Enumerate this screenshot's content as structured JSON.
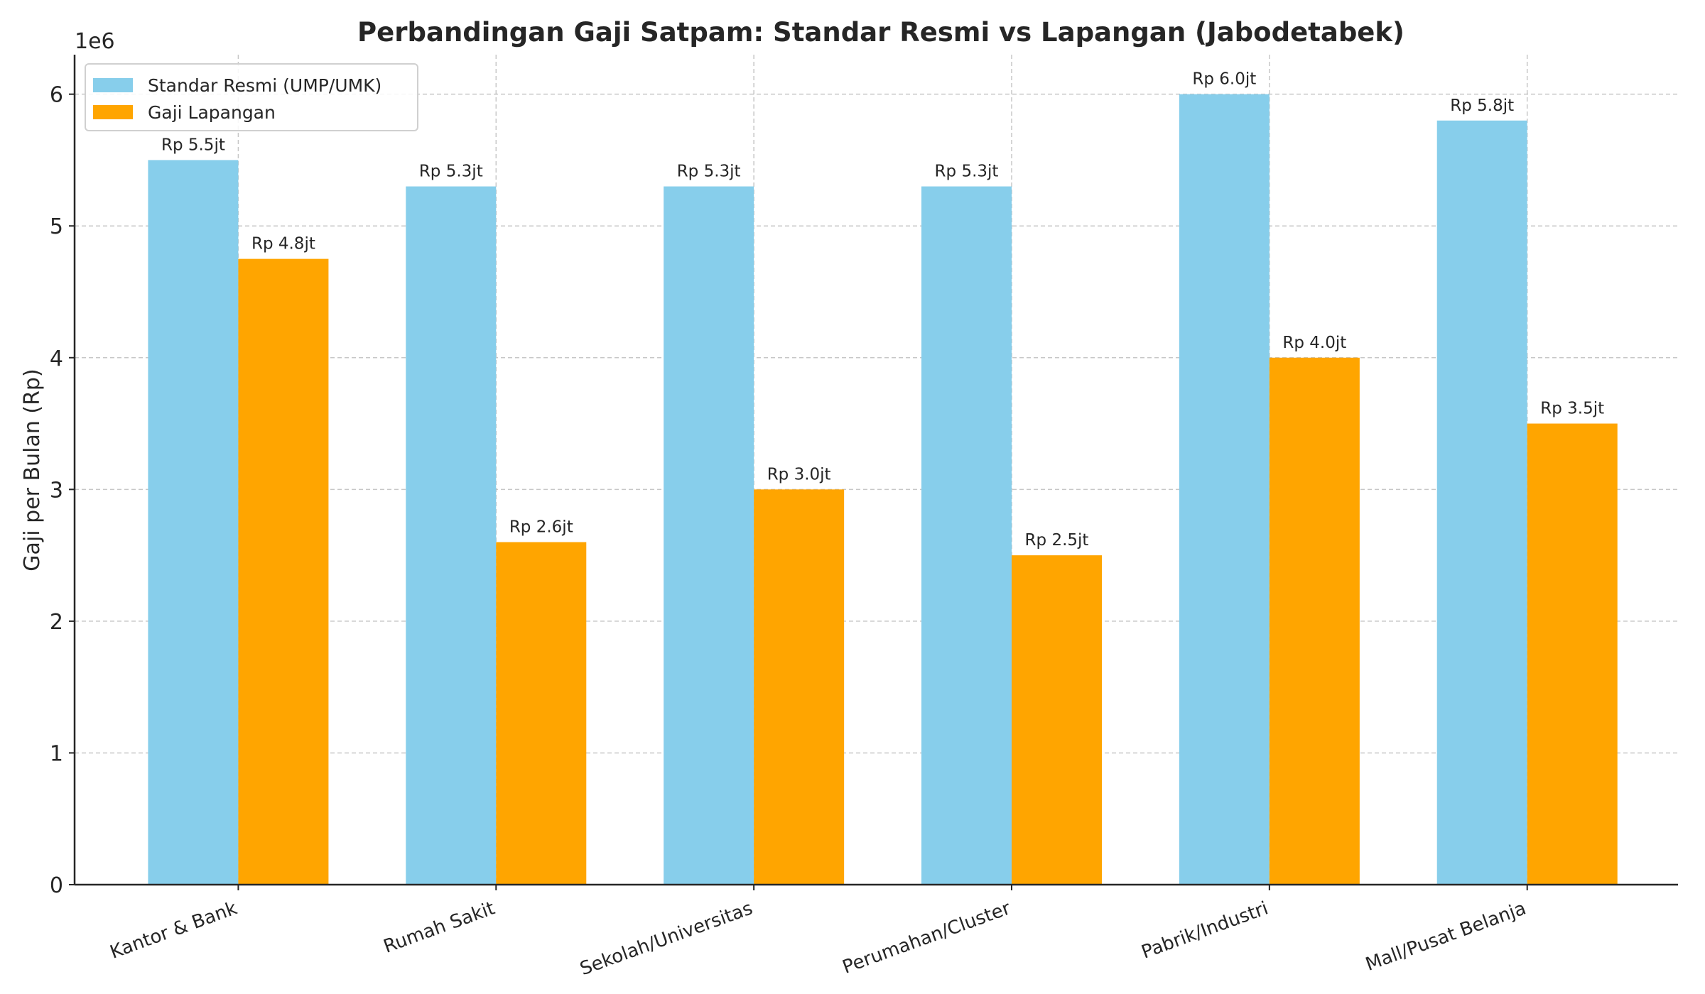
{
  "chart_data": {
    "type": "bar",
    "title": "Perbandingan Gaji Satpam: Standar Resmi vs Lapangan (Jabodetabek)",
    "xlabel": "",
    "ylabel": "Gaji per Bulan (Rp)",
    "y_offset_label": "1e6",
    "ylim": [
      0,
      6300000
    ],
    "yticks": [
      0,
      1000000,
      2000000,
      3000000,
      4000000,
      5000000,
      6000000
    ],
    "ytick_labels": [
      "0",
      "1",
      "2",
      "3",
      "4",
      "5",
      "6"
    ],
    "grid": true,
    "legend_position": "top-left",
    "categories": [
      "Kantor & Bank",
      "Rumah Sakit",
      "Sekolah/Universitas",
      "Perumahan/Cluster",
      "Pabrik/Industri",
      "Mall/Pusat Belanja"
    ],
    "series": [
      {
        "name": "Standar Resmi (UMP/UMK)",
        "color": "#87CEEB",
        "values": [
          5500000,
          5300000,
          5300000,
          5300000,
          6000000,
          5800000
        ],
        "labels": [
          "Rp 5.5jt",
          "Rp 5.3jt",
          "Rp 5.3jt",
          "Rp 5.3jt",
          "Rp 6.0jt",
          "Rp 5.8jt"
        ]
      },
      {
        "name": "Gaji Lapangan",
        "color": "#FFA500",
        "values": [
          4750000,
          2600000,
          3000000,
          2500000,
          4000000,
          3500000
        ],
        "labels": [
          "Rp 4.8jt",
          "Rp 2.6jt",
          "Rp 3.0jt",
          "Rp 2.5jt",
          "Rp 4.0jt",
          "Rp 3.5jt"
        ]
      }
    ]
  }
}
